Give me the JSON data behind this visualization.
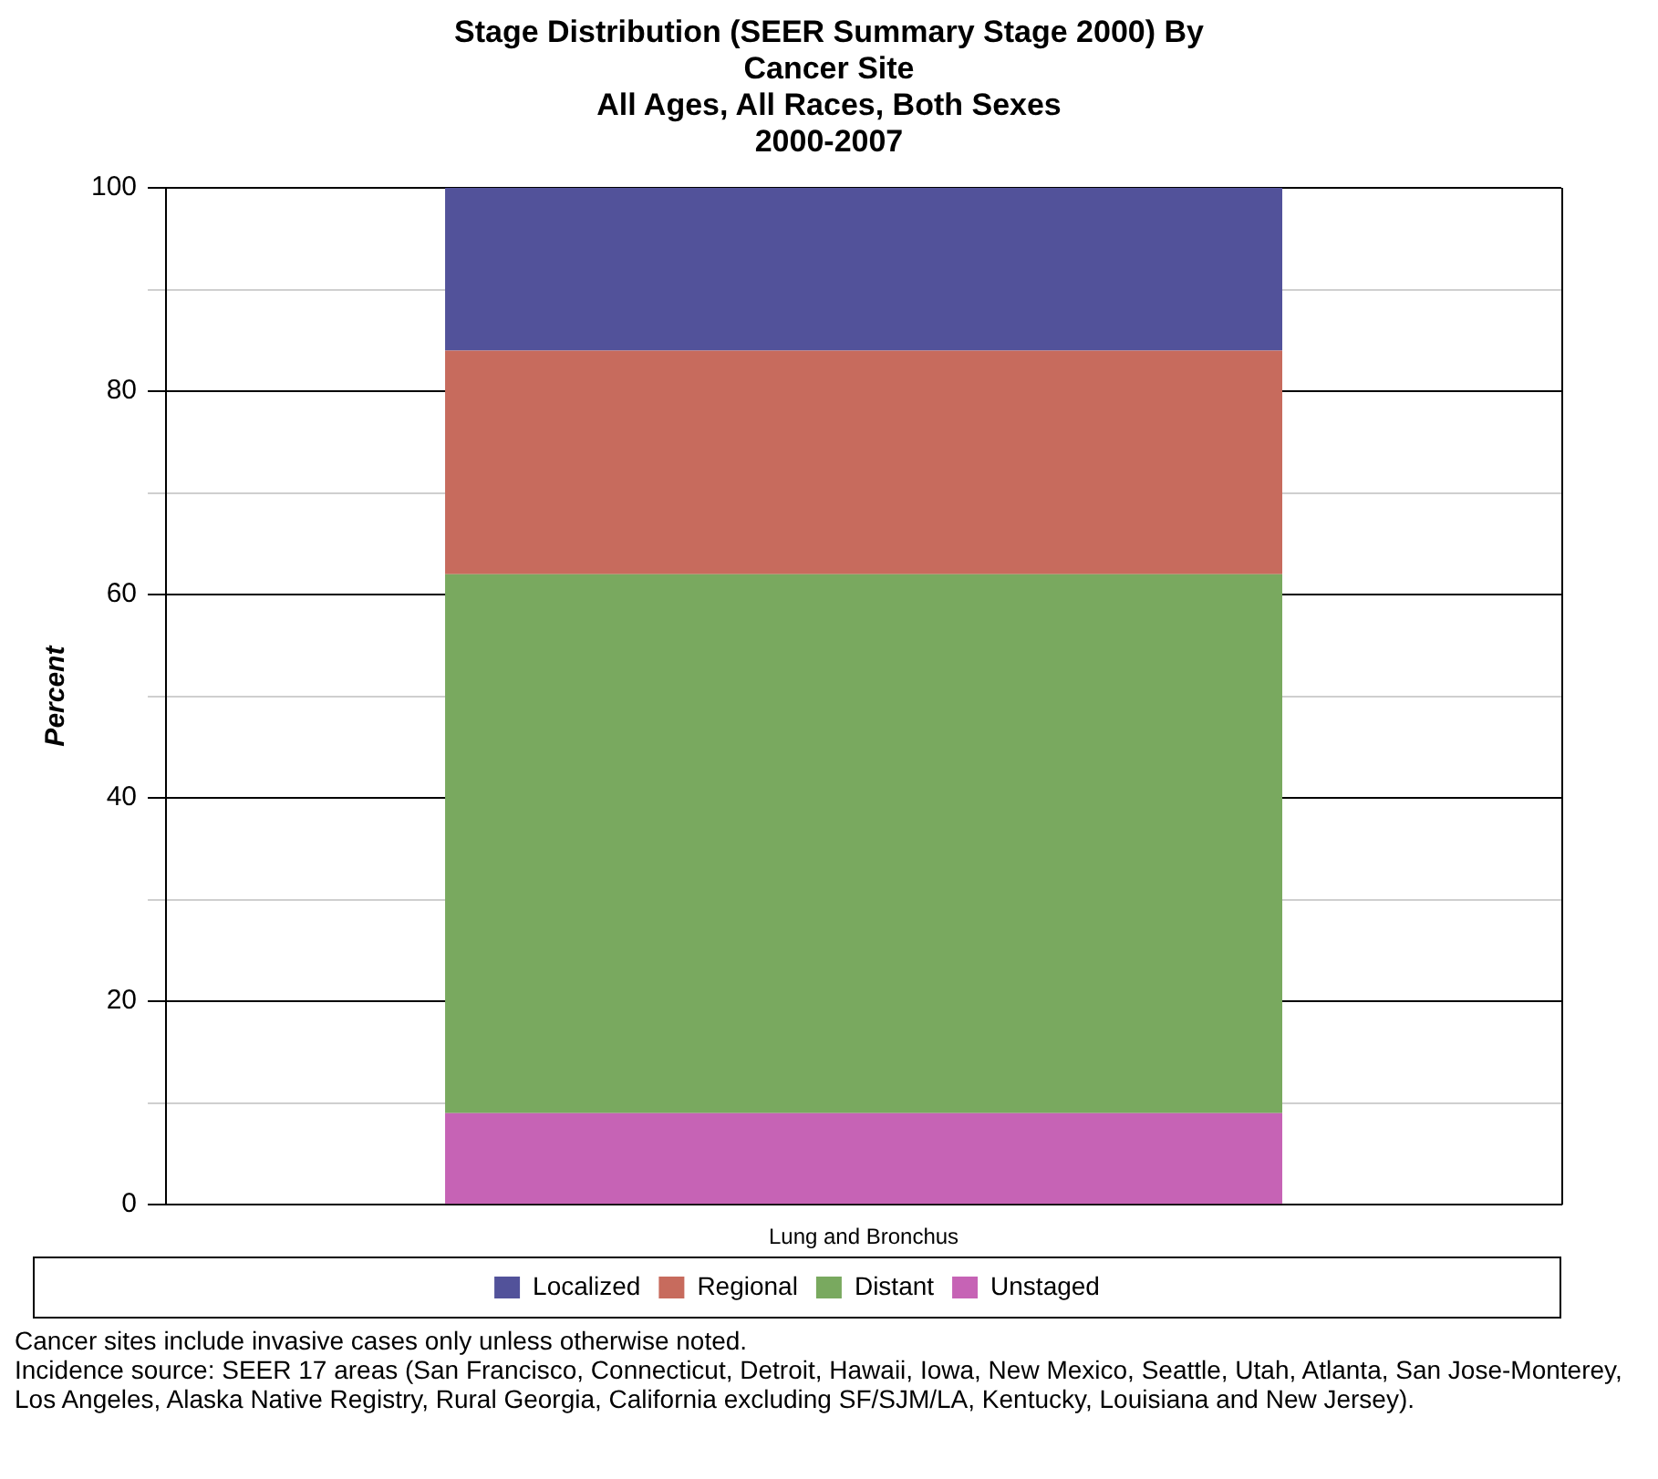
{
  "chart_data": {
    "type": "bar",
    "title": "Stage Distribution (SEER Summary Stage 2000) By Cancer Site",
    "subtitle": "All Ages, All Races, Both Sexes 2000-2007",
    "ylabel": "Percent",
    "categories": [
      "Lung and Bronchus"
    ],
    "stacked": true,
    "series": [
      {
        "name": "Unstaged",
        "color": "#c663b5",
        "values": [
          9
        ]
      },
      {
        "name": "Distant",
        "color": "#79a95f",
        "values": [
          53
        ]
      },
      {
        "name": "Regional",
        "color": "#c76b5d",
        "values": [
          22
        ]
      },
      {
        "name": "Localized",
        "color": "#52529a",
        "values": [
          16
        ]
      }
    ],
    "ylim": [
      0,
      100
    ],
    "yticks": [
      0,
      {
        "value": 10,
        "label": null
      },
      20,
      {
        "value": 30,
        "label": null
      },
      40,
      {
        "value": 50,
        "label": null
      },
      60,
      {
        "value": 70,
        "label": null
      },
      80,
      {
        "value": 90,
        "label": null
      },
      100
    ],
    "grid": "y",
    "legend": "bottom",
    "annotations": [
      "Cancer sites include invasive cases only unless otherwise noted.",
      "Incidence source: SEER 17 areas (San Francisco, Connecticut, Detroit, Hawaii, Iowa, New Mexico, Seattle, Utah, Atlanta, San Jose-Monterey, Los Angeles, Alaska Native Registry, Rural Georgia, California excluding SF/SJM/LA, Kentucky, Louisiana and New Jersey)."
    ]
  }
}
